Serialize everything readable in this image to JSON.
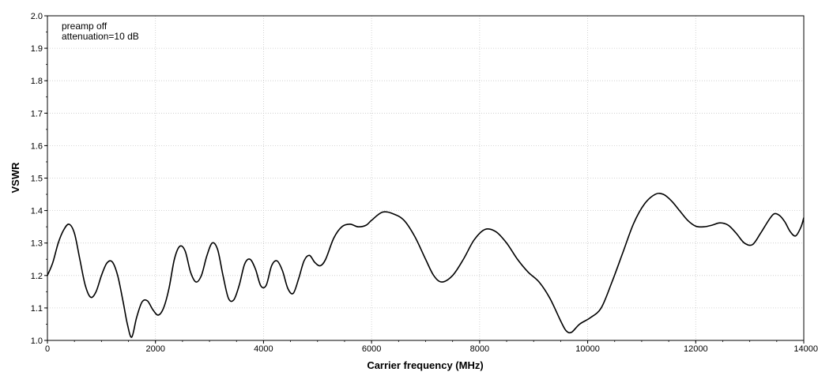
{
  "chart_data": {
    "type": "line",
    "title": "",
    "xlabel": "Carrier frequency (MHz)",
    "ylabel": "VSWR",
    "xlim": [
      0,
      14000
    ],
    "ylim": [
      1.0,
      2.0
    ],
    "xticks": [
      0,
      2000,
      4000,
      6000,
      8000,
      10000,
      12000,
      14000
    ],
    "yticks": [
      "1.0",
      "1.1",
      "1.2",
      "1.3",
      "1.4",
      "1.5",
      "1.6",
      "1.7",
      "1.8",
      "1.9",
      "2.0"
    ],
    "grid": true,
    "annotations": [
      "preamp off",
      "attenuation=10 dB"
    ],
    "series": [
      {
        "color": "#000000",
        "x": [
          0,
          100,
          200,
          300,
          400,
          500,
          600,
          700,
          800,
          900,
          1000,
          1100,
          1200,
          1300,
          1400,
          1480,
          1560,
          1650,
          1750,
          1850,
          1950,
          2050,
          2150,
          2250,
          2350,
          2450,
          2550,
          2650,
          2750,
          2850,
          2950,
          3050,
          3150,
          3250,
          3350,
          3450,
          3550,
          3650,
          3750,
          3850,
          3950,
          4050,
          4150,
          4250,
          4350,
          4450,
          4550,
          4650,
          4750,
          4850,
          4950,
          5050,
          5150,
          5300,
          5450,
          5600,
          5750,
          5900,
          6000,
          6200,
          6400,
          6600,
          6800,
          7000,
          7150,
          7300,
          7500,
          7700,
          7900,
          8100,
          8300,
          8500,
          8700,
          8900,
          9100,
          9300,
          9500,
          9600,
          9700,
          9850,
          10050,
          10250,
          10450,
          10650,
          10850,
          11050,
          11250,
          11400,
          11550,
          11700,
          11850,
          12000,
          12150,
          12300,
          12450,
          12600,
          12750,
          12900,
          13050,
          13200,
          13350,
          13450,
          13550,
          13650,
          13750,
          13850,
          13950,
          14000
        ],
        "y": [
          1.2,
          1.24,
          1.3,
          1.34,
          1.358,
          1.33,
          1.25,
          1.17,
          1.133,
          1.15,
          1.2,
          1.238,
          1.242,
          1.2,
          1.12,
          1.05,
          1.01,
          1.07,
          1.118,
          1.122,
          1.095,
          1.078,
          1.1,
          1.16,
          1.25,
          1.29,
          1.275,
          1.21,
          1.18,
          1.2,
          1.26,
          1.3,
          1.28,
          1.2,
          1.13,
          1.125,
          1.17,
          1.235,
          1.25,
          1.22,
          1.168,
          1.17,
          1.23,
          1.245,
          1.215,
          1.16,
          1.145,
          1.19,
          1.245,
          1.262,
          1.24,
          1.23,
          1.25,
          1.315,
          1.35,
          1.358,
          1.35,
          1.355,
          1.37,
          1.395,
          1.39,
          1.37,
          1.32,
          1.25,
          1.2,
          1.18,
          1.2,
          1.25,
          1.31,
          1.342,
          1.335,
          1.3,
          1.25,
          1.21,
          1.18,
          1.13,
          1.06,
          1.03,
          1.025,
          1.05,
          1.07,
          1.1,
          1.18,
          1.27,
          1.36,
          1.42,
          1.45,
          1.45,
          1.43,
          1.4,
          1.37,
          1.352,
          1.35,
          1.355,
          1.362,
          1.355,
          1.33,
          1.3,
          1.295,
          1.33,
          1.37,
          1.39,
          1.385,
          1.365,
          1.335,
          1.322,
          1.35,
          1.378
        ]
      }
    ]
  }
}
